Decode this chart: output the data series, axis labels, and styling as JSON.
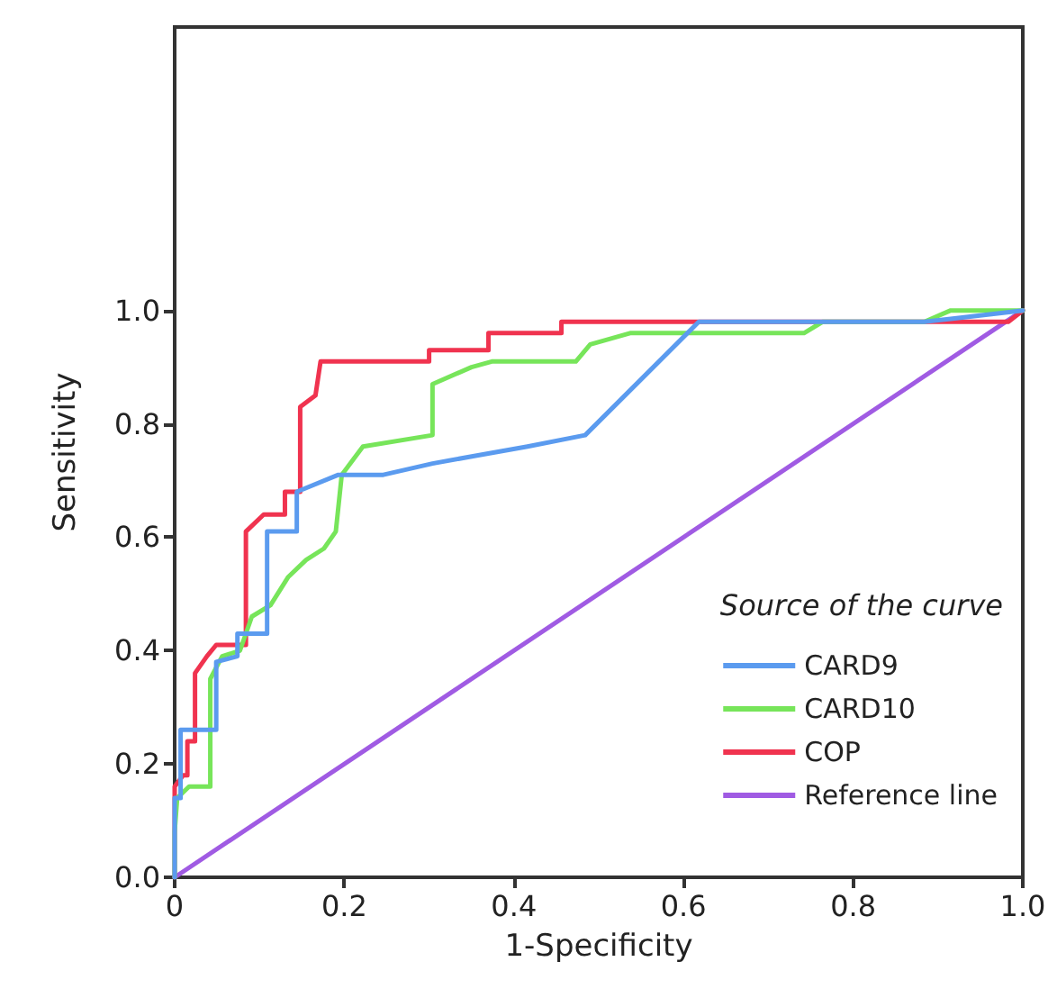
{
  "chart_data": {
    "type": "line",
    "xlabel": "1-Specificity",
    "ylabel": "Sensitivity",
    "legend_title": "Source of the curve",
    "legend": "bottom right",
    "grid": false,
    "marker": "none",
    "line_style": "solid",
    "xlim": [
      0,
      1
    ],
    "ylim": [
      0,
      1.5
    ],
    "xticks": [
      {
        "value": 0,
        "label": "0"
      },
      0.2,
      0.4,
      0.6,
      0.8,
      {
        "value": 1,
        "label": "1.0"
      }
    ],
    "yticks": [
      {
        "value": 0,
        "label": "0.0"
      },
      0.2,
      0.4,
      0.6,
      0.8,
      {
        "value": 1,
        "label": "1.0"
      }
    ],
    "series": [
      {
        "name": "CARD9",
        "color": "#5b9bef",
        "x": [
          0,
          0,
          0.007,
          0.007,
          0.049,
          0.049,
          0.074,
          0.074,
          0.109,
          0.109,
          0.144,
          0.144,
          0.193,
          0.246,
          0.304,
          0.416,
          0.484,
          0.618,
          0.884,
          0.915,
          1
        ],
        "values": [
          0,
          0.14,
          0.14,
          0.26,
          0.26,
          0.38,
          0.39,
          0.43,
          0.43,
          0.61,
          0.61,
          0.68,
          0.71,
          0.71,
          0.73,
          0.76,
          0.78,
          0.98,
          0.98,
          0.985,
          1
        ]
      },
      {
        "name": "CARD10",
        "color": "#77e55a",
        "x": [
          0,
          0,
          0.003,
          0.017,
          0.042,
          0.042,
          0.056,
          0.077,
          0.091,
          0.113,
          0.134,
          0.155,
          0.176,
          0.19,
          0.197,
          0.222,
          0.304,
          0.304,
          0.35,
          0.374,
          0.473,
          0.49,
          0.537,
          0.742,
          0.764,
          0.884,
          0.915,
          1
        ],
        "values": [
          0,
          0.08,
          0.14,
          0.16,
          0.16,
          0.35,
          0.39,
          0.4,
          0.46,
          0.48,
          0.53,
          0.56,
          0.58,
          0.61,
          0.71,
          0.76,
          0.78,
          0.87,
          0.9,
          0.91,
          0.91,
          0.94,
          0.96,
          0.96,
          0.98,
          0.98,
          1,
          1
        ]
      },
      {
        "name": "COP",
        "color": "#f0334f",
        "x": [
          0,
          0,
          0.01,
          0.015,
          0.015,
          0.024,
          0.024,
          0.038,
          0.049,
          0.084,
          0.084,
          0.105,
          0.13,
          0.13,
          0.148,
          0.148,
          0.166,
          0.172,
          0.3,
          0.3,
          0.37,
          0.37,
          0.456,
          0.456,
          0.983,
          1
        ],
        "values": [
          0,
          0.16,
          0.18,
          0.18,
          0.24,
          0.24,
          0.36,
          0.39,
          0.41,
          0.41,
          0.61,
          0.64,
          0.64,
          0.68,
          0.68,
          0.83,
          0.85,
          0.91,
          0.91,
          0.93,
          0.93,
          0.96,
          0.96,
          0.98,
          0.98,
          1
        ]
      },
      {
        "name": "Reference line",
        "color": "#a05be3",
        "x": [
          0,
          1
        ],
        "values": [
          0,
          1
        ]
      }
    ]
  }
}
